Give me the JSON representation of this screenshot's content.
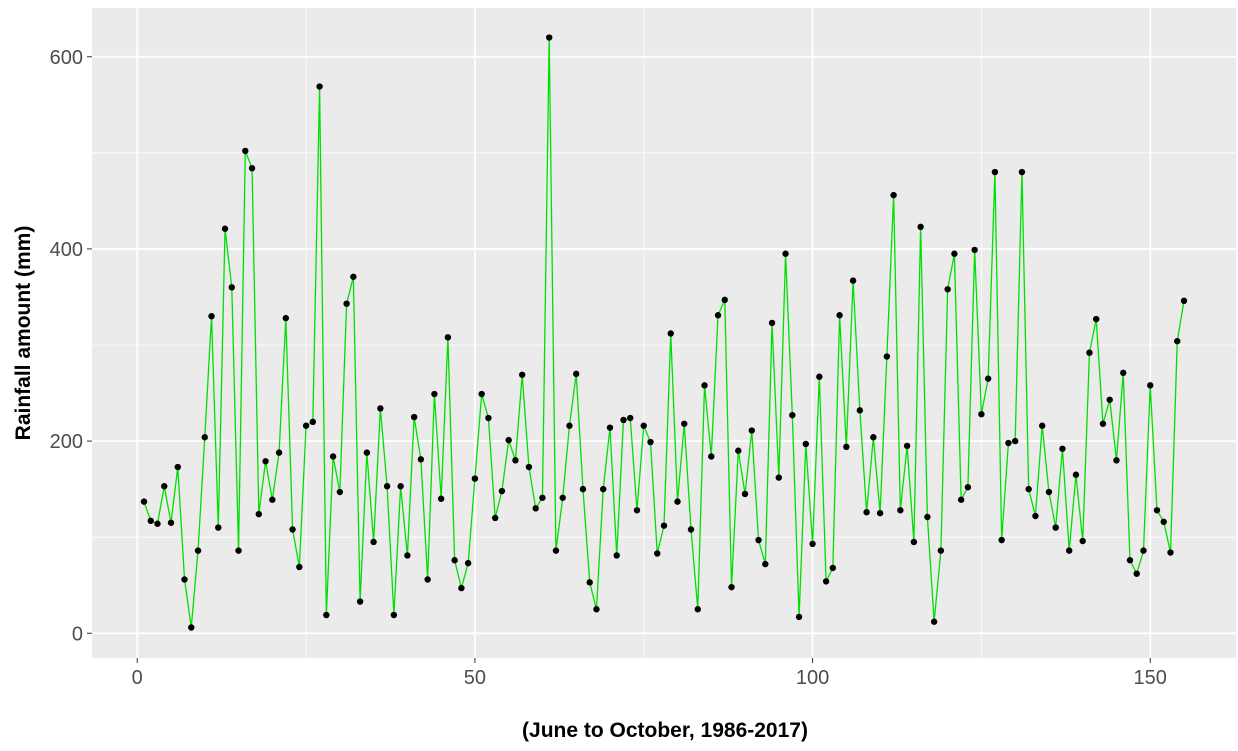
{
  "chart_data": {
    "type": "line",
    "x_label": "(June to October, 1986-2017)",
    "y_label": "Rainfall amount (mm)",
    "x": [
      1,
      2,
      3,
      4,
      5,
      6,
      7,
      8,
      9,
      10,
      11,
      12,
      13,
      14,
      15,
      16,
      17,
      18,
      19,
      20,
      21,
      22,
      23,
      24,
      25,
      26,
      27,
      28,
      29,
      30,
      31,
      32,
      33,
      34,
      35,
      36,
      37,
      38,
      39,
      40,
      41,
      42,
      43,
      44,
      45,
      46,
      47,
      48,
      49,
      50,
      51,
      52,
      53,
      54,
      55,
      56,
      57,
      58,
      59,
      60,
      61,
      62,
      63,
      64,
      65,
      66,
      67,
      68,
      69,
      70,
      71,
      72,
      73,
      74,
      75,
      76,
      77,
      78,
      79,
      80,
      81,
      82,
      83,
      84,
      85,
      86,
      87,
      88,
      89,
      90,
      91,
      92,
      93,
      94,
      95,
      96,
      97,
      98,
      99,
      100,
      101,
      102,
      103,
      104,
      105,
      106,
      107,
      108,
      109,
      110,
      111,
      112,
      113,
      114,
      115,
      116,
      117,
      118,
      119,
      120,
      121,
      122,
      123,
      124,
      125,
      126,
      127,
      128,
      129,
      130,
      131,
      132,
      133,
      134,
      135,
      136,
      137,
      138,
      139,
      140,
      141,
      142,
      143,
      144,
      145,
      146,
      147,
      148,
      149,
      150,
      151,
      152,
      153,
      154,
      155
    ],
    "values": [
      137,
      117,
      114,
      153,
      115,
      173,
      56,
      6,
      86,
      204,
      330,
      110,
      421,
      360,
      86,
      502,
      484,
      124,
      179,
      139,
      188,
      328,
      108,
      69,
      216,
      220,
      569,
      19,
      184,
      147,
      343,
      371,
      33,
      188,
      95,
      234,
      153,
      19,
      153,
      81,
      225,
      181,
      56,
      249,
      140,
      308,
      76,
      47,
      73,
      161,
      249,
      224,
      120,
      148,
      201,
      180,
      269,
      173,
      130,
      141,
      620,
      86,
      141,
      216,
      270,
      150,
      53,
      25,
      150,
      214,
      81,
      222,
      224,
      128,
      216,
      199,
      83,
      112,
      312,
      137,
      218,
      108,
      25,
      258,
      184,
      331,
      347,
      48,
      190,
      145,
      211,
      97,
      72,
      323,
      162,
      395,
      227,
      17,
      197,
      93,
      267,
      54,
      68,
      331,
      194,
      367,
      232,
      126,
      204,
      125,
      288,
      456,
      128,
      195,
      95,
      423,
      121,
      12,
      86,
      358,
      395,
      139,
      152,
      399,
      228,
      265,
      480,
      97,
      198,
      200,
      480,
      150,
      122,
      216,
      147,
      110,
      192,
      86,
      165,
      96,
      292,
      327,
      218,
      243,
      180,
      271,
      76,
      62,
      86,
      258,
      128,
      116,
      84,
      304,
      346
    ],
    "color": "#00e000",
    "marker_color": "#000000",
    "xlim": [
      -6.7,
      162.7
    ],
    "ylim": [
      -25.75,
      650.75
    ],
    "xticks": [
      0,
      50,
      100,
      150
    ],
    "yticks": [
      0,
      200,
      400,
      600
    ],
    "grid": true
  }
}
